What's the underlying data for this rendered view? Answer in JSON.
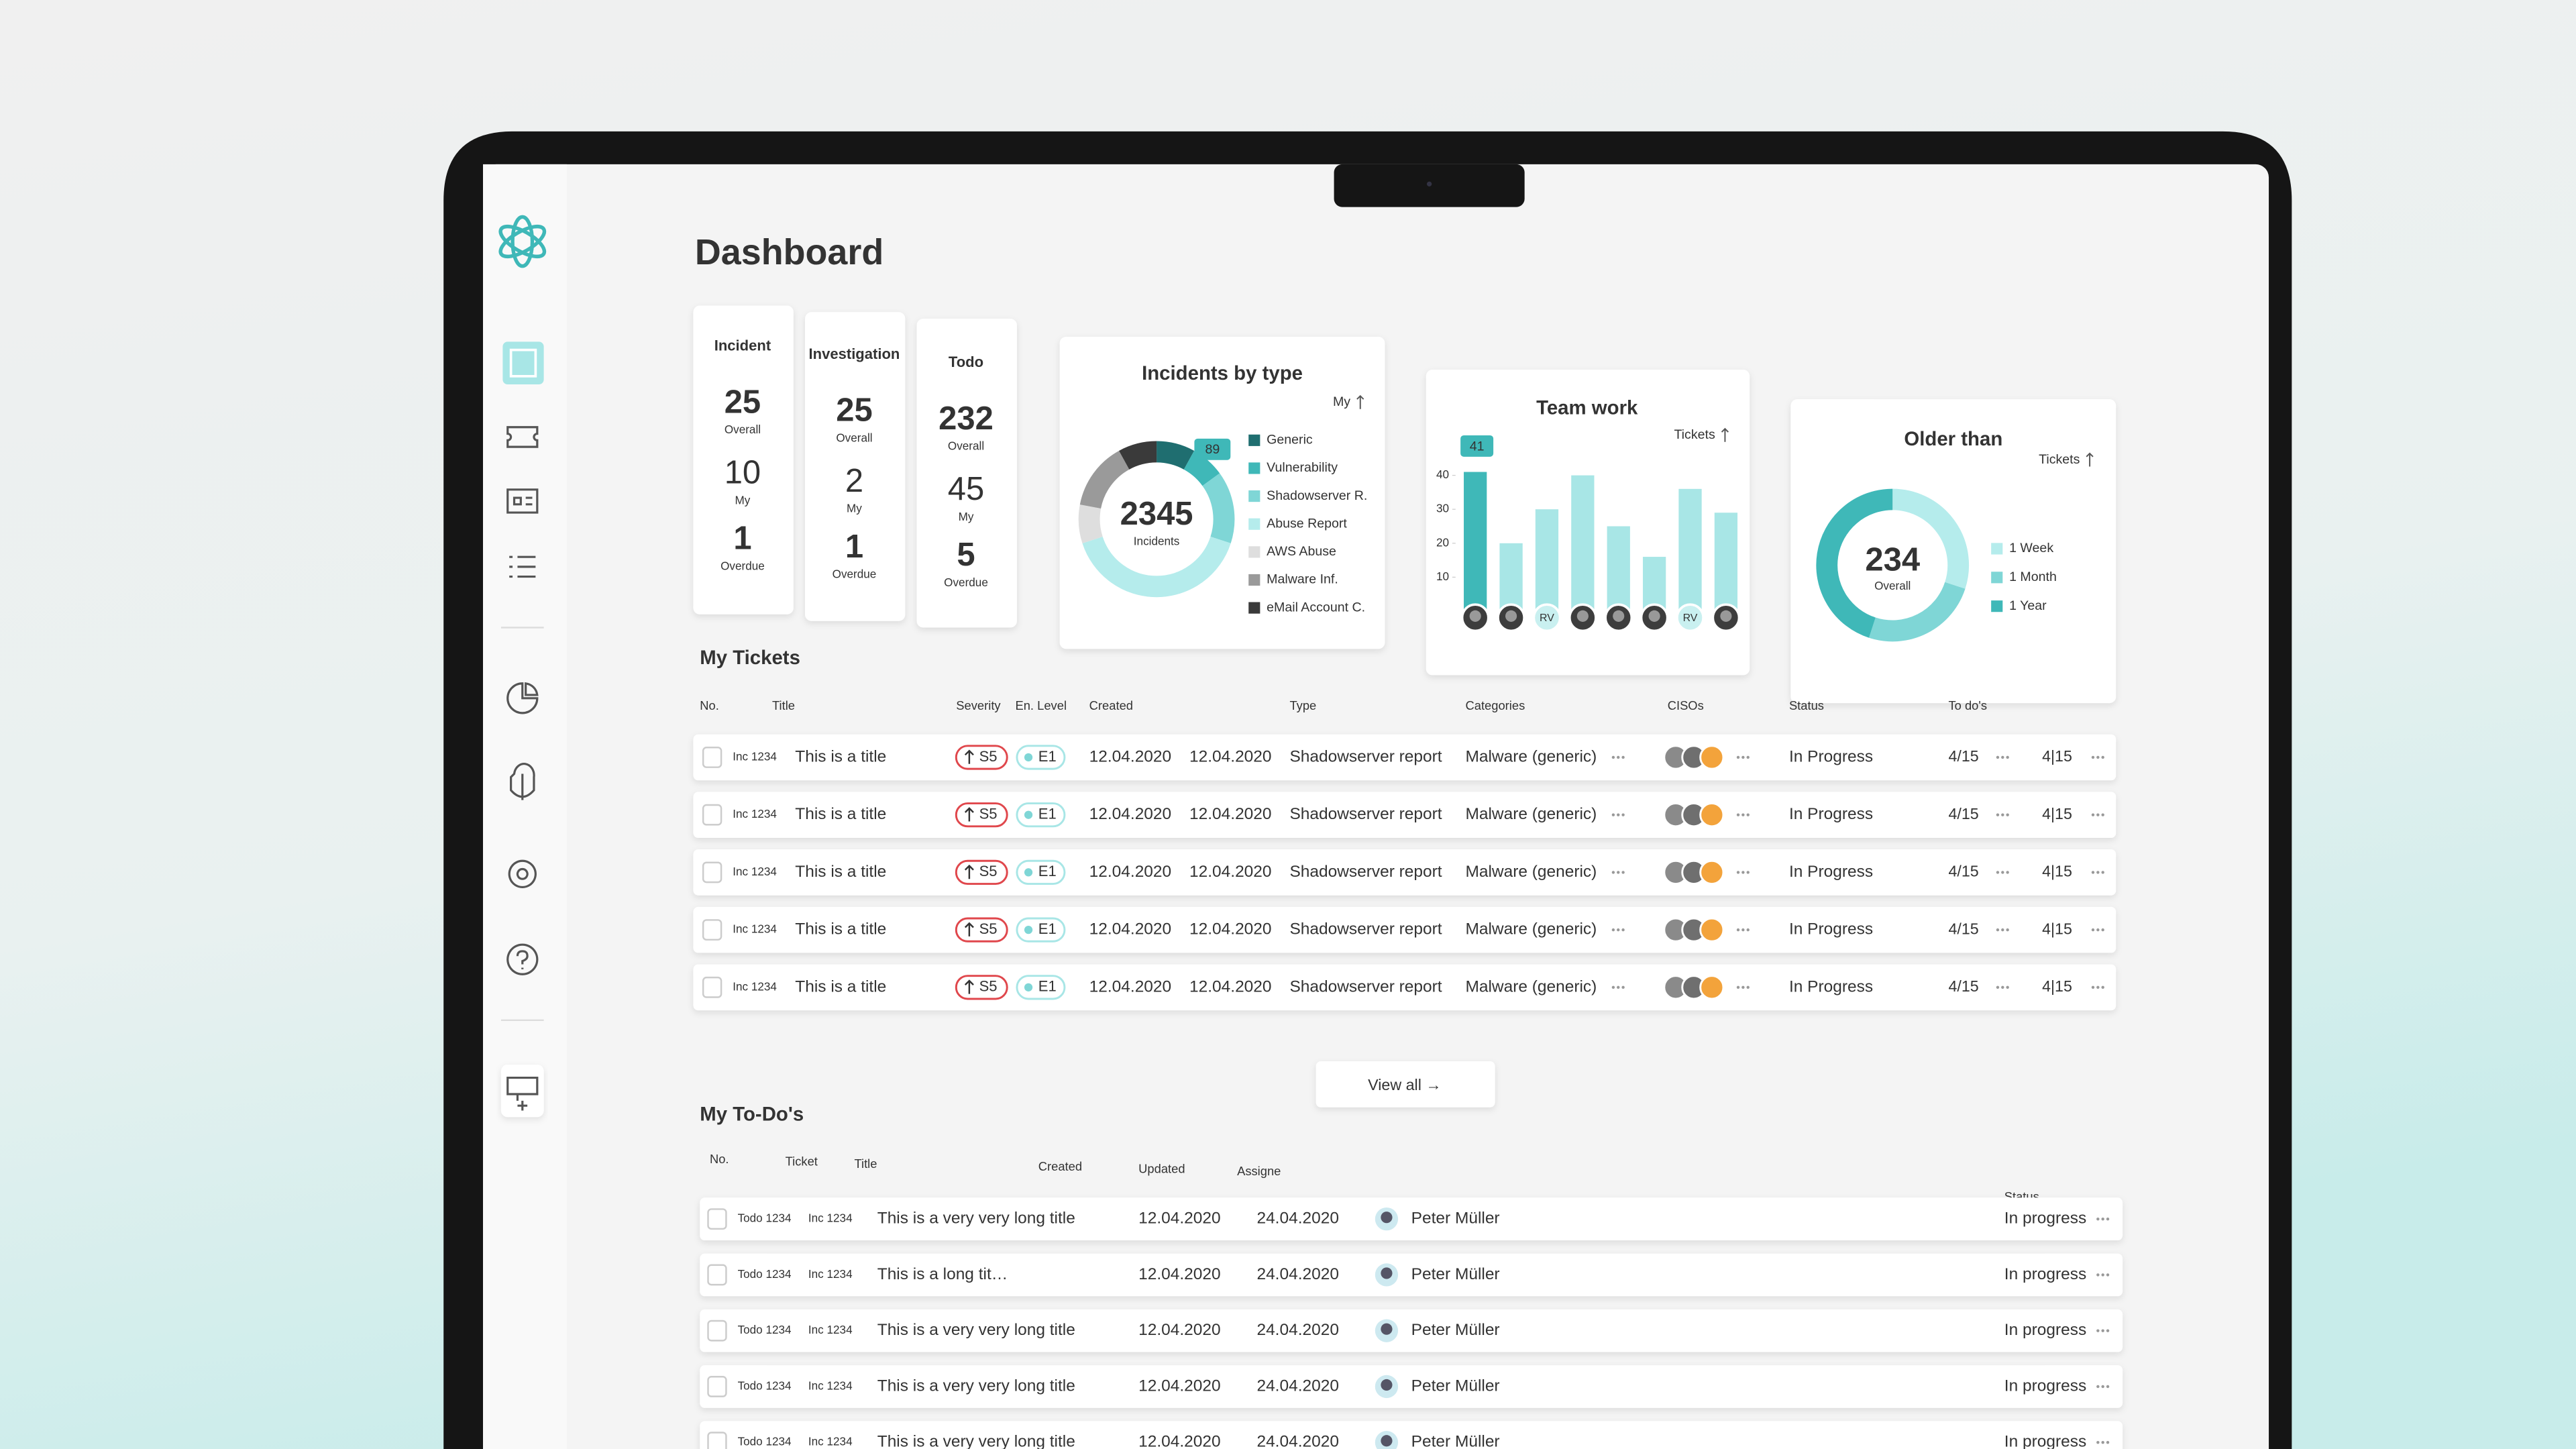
{
  "header": {
    "title": "Dashboard"
  },
  "stat_cards": [
    {
      "label": "Incident",
      "overall": 25,
      "overall_label": "Overall",
      "my": 10,
      "my_label": "My",
      "overdue": 1,
      "overdue_label": "Overdue"
    },
    {
      "label": "Investigation",
      "overall": 25,
      "overall_label": "Overall",
      "my": 2,
      "my_label": "My",
      "overdue": 1,
      "overdue_label": "Overdue"
    },
    {
      "label": "Todo",
      "overall": 232,
      "overall_label": "Overall",
      "my": 45,
      "my_label": "My",
      "overdue": 5,
      "overdue_label": "Overdue"
    }
  ],
  "incidents_by_type": {
    "title": "Incidents by type",
    "filter": "My",
    "total": 2345,
    "total_label": "Incidents",
    "callout": 89,
    "legend": [
      "Generic",
      "Vulnerability",
      "Shadowserver R.",
      "Abuse Report",
      "AWS Abuse",
      "Malware Inf.",
      "eMail Account C."
    ],
    "colors": [
      "#1f6e70",
      "#3fb8b8",
      "#7fd6d6",
      "#b5ecec",
      "#dedede",
      "#9a9a9a",
      "#3a3a3a"
    ],
    "values": [
      8,
      7,
      15,
      40,
      8,
      14,
      8
    ]
  },
  "team_work": {
    "title": "Team work",
    "filter": "Tickets",
    "callout": 41,
    "ylim": [
      0,
      45
    ],
    "yticks": [
      10,
      20,
      30,
      40
    ],
    "values": [
      41,
      20,
      30,
      40,
      25,
      16,
      36,
      29
    ],
    "color": "#a8e6e6",
    "highlight_color": "#3fb8b8",
    "avatars": [
      null,
      null,
      "RV",
      null,
      null,
      null,
      "RV",
      null
    ]
  },
  "older_than": {
    "title": "Older than",
    "filter": "Tickets",
    "total": 234,
    "total_label": "Overall",
    "legend": [
      "1 Week",
      "1 Month",
      "1 Year"
    ],
    "colors": [
      "#b5ecec",
      "#7fd6d6",
      "#3fb8b8"
    ],
    "values": [
      30,
      25,
      45
    ]
  },
  "tickets": {
    "title": "My Tickets",
    "columns": [
      "No.",
      "Title",
      "Severity",
      "En. Level",
      "Created",
      "Type",
      "Categories",
      "CISOs",
      "Status",
      "To do's"
    ],
    "rows": [
      {
        "no": "Inc 1234",
        "title": "This is a title",
        "severity": "S5",
        "level": "E1",
        "created": "12.04.2020",
        "updated": "12.04.2020",
        "type": "Shadowserver report",
        "category": "Malware (generic)",
        "status": "In Progress",
        "todos": "4/15",
        "subtasks": "4|15"
      },
      {
        "no": "Inc 1234",
        "title": "This is a title",
        "severity": "S5",
        "level": "E1",
        "created": "12.04.2020",
        "updated": "12.04.2020",
        "type": "Shadowserver report",
        "category": "Malware (generic)",
        "status": "In Progress",
        "todos": "4/15",
        "subtasks": "4|15"
      },
      {
        "no": "Inc 1234",
        "title": "This is a title",
        "severity": "S5",
        "level": "E1",
        "created": "12.04.2020",
        "updated": "12.04.2020",
        "type": "Shadowserver report",
        "category": "Malware (generic)",
        "status": "In Progress",
        "todos": "4/15",
        "subtasks": "4|15"
      },
      {
        "no": "Inc 1234",
        "title": "This is a title",
        "severity": "S5",
        "level": "E1",
        "created": "12.04.2020",
        "updated": "12.04.2020",
        "type": "Shadowserver report",
        "category": "Malware (generic)",
        "status": "In Progress",
        "todos": "4/15",
        "subtasks": "4|15"
      },
      {
        "no": "Inc 1234",
        "title": "This is a title",
        "severity": "S5",
        "level": "E1",
        "created": "12.04.2020",
        "updated": "12.04.2020",
        "type": "Shadowserver report",
        "category": "Malware (generic)",
        "status": "In Progress",
        "todos": "4/15",
        "subtasks": "4|15"
      }
    ],
    "view_all": "View all →"
  },
  "todos": {
    "title": "My To-Do's",
    "columns": [
      "No.",
      "Ticket",
      "Title",
      "Created",
      "Updated",
      "Assigne",
      "Status"
    ],
    "rows": [
      {
        "no": "Todo 1234",
        "ticket": "Inc 1234",
        "title": "This is a very very long title",
        "created": "12.04.2020",
        "updated": "24.04.2020",
        "assignee": "Peter Müller",
        "status": "In progress"
      },
      {
        "no": "Todo 1234",
        "ticket": "Inc 1234",
        "title": "This is a long tit…",
        "created": "12.04.2020",
        "updated": "24.04.2020",
        "assignee": "Peter Müller",
        "status": "In progress"
      },
      {
        "no": "Todo 1234",
        "ticket": "Inc 1234",
        "title": "This is a very very long title",
        "created": "12.04.2020",
        "updated": "24.04.2020",
        "assignee": "Peter Müller",
        "status": "In progress"
      },
      {
        "no": "Todo 1234",
        "ticket": "Inc 1234",
        "title": "This is a very very long title",
        "created": "12.04.2020",
        "updated": "24.04.2020",
        "assignee": "Peter Müller",
        "status": "In progress"
      },
      {
        "no": "Todo 1234",
        "ticket": "Inc 1234",
        "title": "This is a very very long title",
        "created": "12.04.2020",
        "updated": "24.04.2020",
        "assignee": "Peter Müller",
        "status": "In progress"
      }
    ]
  }
}
